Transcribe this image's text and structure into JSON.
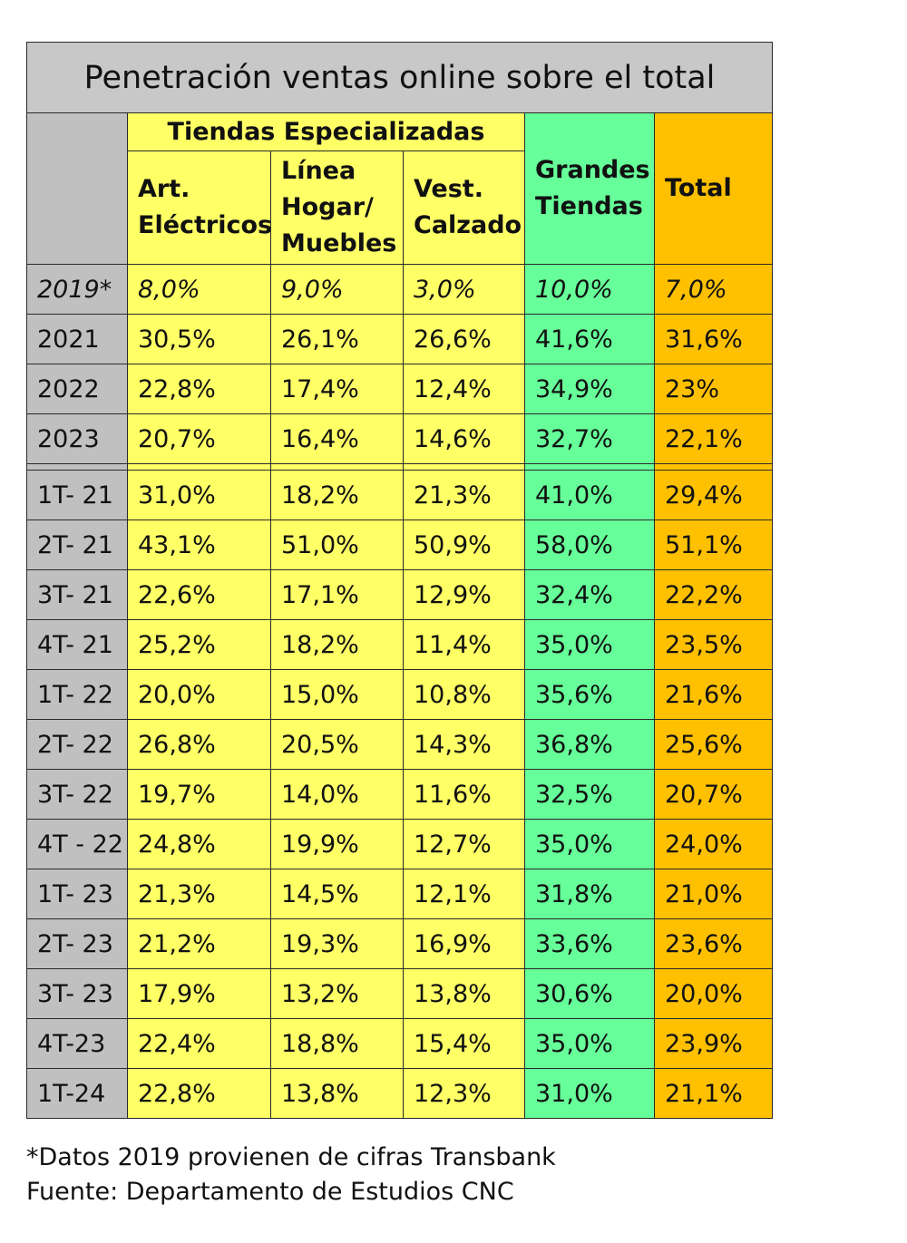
{
  "title": "Penetración ventas online sobre el total",
  "headers": {
    "group": "Tiendas Especializadas",
    "col1": "Art. Eléctricos",
    "col2": "Línea Hogar/ Muebles",
    "col3": "Vest. Calzado",
    "col4": "Grandes Tiendas",
    "col5": "Total"
  },
  "rows_year": [
    {
      "label": "2019*",
      "values": [
        "8,0%",
        "9,0%",
        "3,0%",
        "10,0%",
        "7,0%"
      ]
    },
    {
      "label": "2021",
      "values": [
        "30,5%",
        "26,1%",
        "26,6%",
        "41,6%",
        "31,6%"
      ]
    },
    {
      "label": "2022",
      "values": [
        "22,8%",
        "17,4%",
        "12,4%",
        "34,9%",
        "23%"
      ]
    },
    {
      "label": "2023",
      "values": [
        "20,7%",
        "16,4%",
        "14,6%",
        "32,7%",
        "22,1%"
      ]
    }
  ],
  "rows_quarter": [
    {
      "label": "1T- 21",
      "values": [
        "31,0%",
        "18,2%",
        "21,3%",
        "41,0%",
        "29,4%"
      ]
    },
    {
      "label": "2T- 21",
      "values": [
        "43,1%",
        "51,0%",
        "50,9%",
        "58,0%",
        "51,1%"
      ]
    },
    {
      "label": "3T- 21",
      "values": [
        "22,6%",
        "17,1%",
        "12,9%",
        "32,4%",
        "22,2%"
      ]
    },
    {
      "label": "4T- 21",
      "values": [
        "25,2%",
        "18,2%",
        "11,4%",
        "35,0%",
        "23,5%"
      ]
    },
    {
      "label": "1T- 22",
      "values": [
        "20,0%",
        "15,0%",
        "10,8%",
        "35,6%",
        "21,6%"
      ]
    },
    {
      "label": "2T- 22",
      "values": [
        "26,8%",
        "20,5%",
        "14,3%",
        "36,8%",
        "25,6%"
      ]
    },
    {
      "label": "3T- 22",
      "values": [
        "19,7%",
        "14,0%",
        "11,6%",
        "32,5%",
        "20,7%"
      ]
    },
    {
      "label": "4T - 22",
      "values": [
        "24,8%",
        "19,9%",
        "12,7%",
        "35,0%",
        "24,0%"
      ]
    },
    {
      "label": "1T- 23",
      "values": [
        "21,3%",
        "14,5%",
        "12,1%",
        "31,8%",
        "21,0%"
      ]
    },
    {
      "label": "2T- 23",
      "values": [
        "21,2%",
        "19,3%",
        "16,9%",
        "33,6%",
        "23,6%"
      ]
    },
    {
      "label": "3T- 23",
      "values": [
        "17,9%",
        "13,2%",
        "13,8%",
        "30,6%",
        "20,0%"
      ]
    },
    {
      "label": "4T-23",
      "values": [
        "22,4%",
        "18,8%",
        "15,4%",
        "35,0%",
        "23,9%"
      ]
    },
    {
      "label": "1T-24",
      "values": [
        "22,8%",
        "13,8%",
        "12,3%",
        "31,0%",
        "21,1%"
      ]
    }
  ],
  "colors": {
    "label_col": "#c0c0c0",
    "specialized": "#ffff66",
    "department_stores": "#66ff99",
    "total": "#ffc000",
    "title_bg": "#c8c8c8"
  },
  "notes": {
    "line1": "*Datos 2019 provienen de cifras Transbank",
    "line2": "Fuente: Departamento de Estudios CNC"
  }
}
